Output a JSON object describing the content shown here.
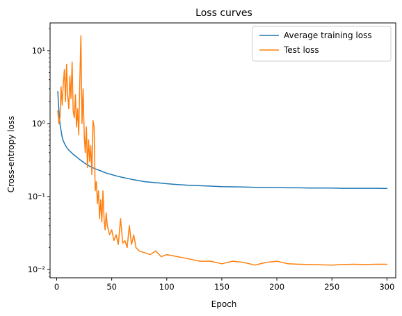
{
  "chart_data": {
    "type": "line",
    "title": "Loss curves",
    "xlabel": "Epoch",
    "ylabel": "Cross-entropy loss",
    "xlim": [
      -6,
      308
    ],
    "ylim": [
      0.0077,
      24.0
    ],
    "yscale": "log",
    "grid": false,
    "legend_position": "upper right",
    "xticks": [
      0,
      50,
      100,
      150,
      200,
      250,
      300
    ],
    "xtick_labels": [
      "0",
      "50",
      "100",
      "150",
      "200",
      "250",
      "300"
    ],
    "yticks": [
      0.01,
      0.1,
      1,
      10
    ],
    "ytick_labels": [
      "10⁻²",
      "10⁻¹",
      "10⁰",
      "10¹"
    ],
    "series": [
      {
        "name": "Average training loss",
        "color": "#1f77b4",
        "x": [
          1,
          2,
          3,
          4,
          5,
          6,
          8,
          10,
          12,
          15,
          18,
          20,
          25,
          30,
          35,
          40,
          45,
          50,
          55,
          60,
          65,
          70,
          75,
          80,
          90,
          100,
          110,
          120,
          130,
          140,
          150,
          160,
          170,
          180,
          190,
          200,
          210,
          220,
          230,
          240,
          250,
          260,
          270,
          280,
          290,
          300
        ],
        "y": [
          2.75,
          1.5,
          1.0,
          0.8,
          0.65,
          0.58,
          0.5,
          0.45,
          0.42,
          0.38,
          0.35,
          0.33,
          0.29,
          0.26,
          0.24,
          0.225,
          0.21,
          0.2,
          0.19,
          0.183,
          0.176,
          0.17,
          0.165,
          0.16,
          0.155,
          0.15,
          0.146,
          0.143,
          0.141,
          0.139,
          0.137,
          0.136,
          0.135,
          0.134,
          0.133,
          0.133,
          0.132,
          0.132,
          0.131,
          0.131,
          0.131,
          0.13,
          0.13,
          0.13,
          0.13,
          0.129
        ]
      },
      {
        "name": "Test loss",
        "color": "#ff7f0e",
        "x": [
          1,
          2,
          3,
          4,
          5,
          6,
          7,
          8,
          9,
          10,
          11,
          12,
          13,
          14,
          15,
          16,
          17,
          18,
          19,
          20,
          21,
          22,
          23,
          24,
          25,
          26,
          27,
          28,
          29,
          30,
          31,
          32,
          33,
          34,
          35,
          36,
          37,
          38,
          39,
          40,
          41,
          42,
          43,
          44,
          45,
          46,
          48,
          50,
          52,
          54,
          56,
          58,
          60,
          62,
          64,
          66,
          68,
          70,
          72,
          75,
          80,
          85,
          90,
          95,
          100,
          110,
          120,
          130,
          140,
          150,
          160,
          170,
          180,
          190,
          200,
          210,
          220,
          230,
          240,
          250,
          260,
          270,
          280,
          290,
          300
        ],
        "y": [
          1.5,
          1.0,
          1.2,
          3.2,
          1.8,
          3.5,
          5.5,
          2.0,
          6.5,
          2.5,
          1.6,
          4.5,
          2.2,
          7.0,
          1.5,
          1.2,
          2.5,
          0.9,
          1.6,
          0.7,
          3.5,
          16.0,
          1.0,
          3.0,
          0.7,
          0.4,
          0.9,
          0.25,
          0.6,
          0.3,
          0.5,
          0.2,
          1.1,
          0.9,
          0.12,
          0.16,
          0.08,
          0.12,
          0.05,
          0.09,
          0.045,
          0.12,
          0.05,
          0.035,
          0.06,
          0.04,
          0.03,
          0.035,
          0.025,
          0.03,
          0.022,
          0.05,
          0.023,
          0.025,
          0.02,
          0.04,
          0.022,
          0.03,
          0.02,
          0.018,
          0.017,
          0.016,
          0.018,
          0.015,
          0.016,
          0.015,
          0.014,
          0.013,
          0.013,
          0.012,
          0.013,
          0.0125,
          0.0115,
          0.0125,
          0.013,
          0.012,
          0.0118,
          0.0117,
          0.0116,
          0.0115,
          0.0117,
          0.0118,
          0.0117,
          0.0118,
          0.0118
        ]
      }
    ]
  }
}
